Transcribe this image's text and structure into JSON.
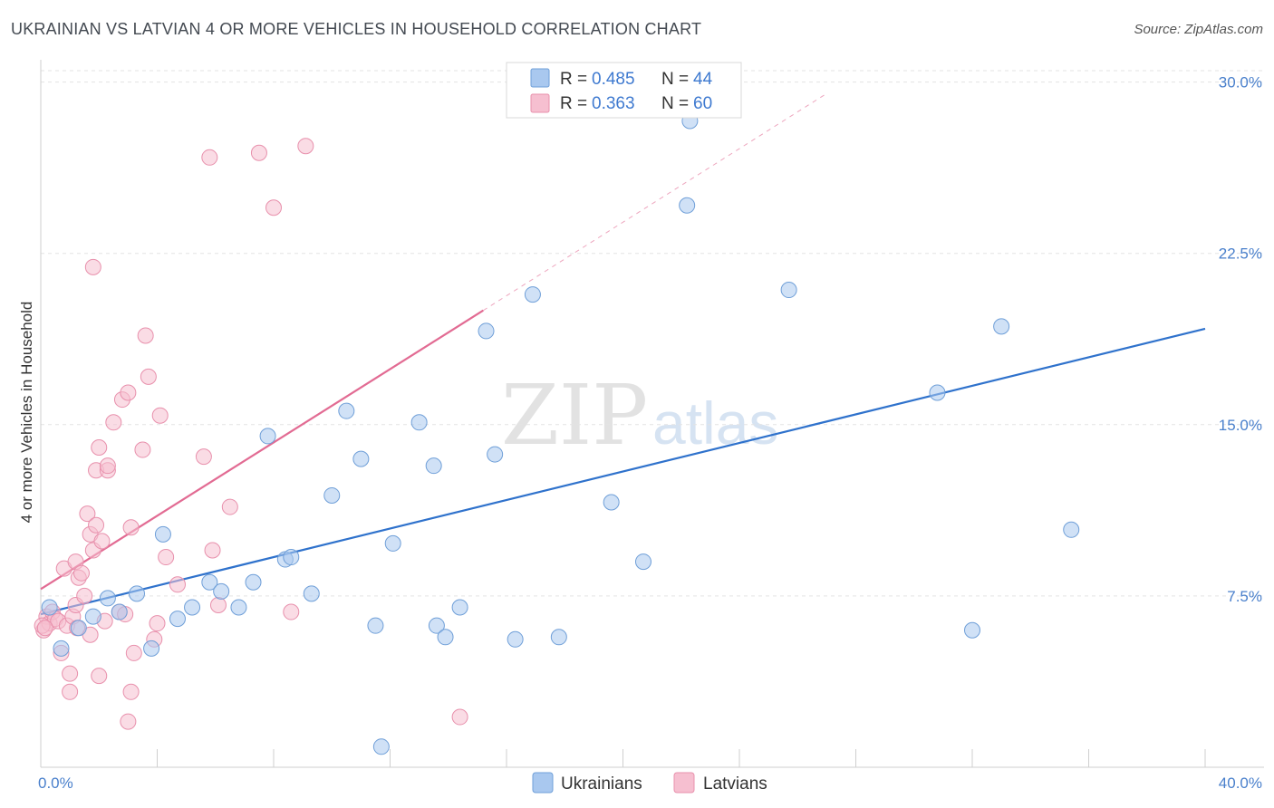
{
  "header": {
    "title": "UKRAINIAN VS LATVIAN 4 OR MORE VEHICLES IN HOUSEHOLD CORRELATION CHART",
    "source": "Source: ZipAtlas.com"
  },
  "watermark": {
    "part1": "ZIP",
    "part2": "atlas"
  },
  "colors": {
    "ukrainians_fill": "#a9c8ef",
    "ukrainians_stroke": "#6f9fd8",
    "ukrainians_line": "#2f72cc",
    "latvians_fill": "#f6bfd0",
    "latvians_stroke": "#e890ac",
    "latvians_line": "#e26b93",
    "axis_text": "#4a80cc"
  },
  "legend": {
    "rows": [
      {
        "r_label": "R =",
        "r_value": "0.485",
        "n_label": "N =",
        "n_value": "44"
      },
      {
        "r_label": "R =",
        "r_value": "0.363",
        "n_label": "N =",
        "n_value": "60"
      }
    ]
  },
  "bottom_legend": {
    "ukrainians": "Ukrainians",
    "latvians": "Latvians"
  },
  "chart_data": {
    "type": "scatter",
    "title": "UKRAINIAN VS LATVIAN 4 OR MORE VEHICLES IN HOUSEHOLD CORRELATION CHART",
    "xlabel": "",
    "ylabel": "4 or more Vehicles in Household",
    "xlim": [
      0,
      40
    ],
    "ylim": [
      0,
      30.5
    ],
    "x_tick_labels": [
      "0.0%",
      "40.0%"
    ],
    "y_ticks": [
      7.5,
      15.0,
      22.5,
      30.0
    ],
    "y_tick_labels": [
      "7.5%",
      "15.0%",
      "22.5%",
      "30.0%"
    ],
    "series": [
      {
        "name": "Ukrainians",
        "r": 0.485,
        "n": 44,
        "trend": {
          "x0": 0,
          "y0": 6.7,
          "x1": 40,
          "y1": 19.2
        },
        "points": [
          [
            0.3,
            7.0
          ],
          [
            0.7,
            5.2
          ],
          [
            1.3,
            6.1
          ],
          [
            1.8,
            6.6
          ],
          [
            2.3,
            7.4
          ],
          [
            2.7,
            6.8
          ],
          [
            3.3,
            7.6
          ],
          [
            3.8,
            5.2
          ],
          [
            4.2,
            10.2
          ],
          [
            4.7,
            6.5
          ],
          [
            5.2,
            7.0
          ],
          [
            5.8,
            8.1
          ],
          [
            6.2,
            7.7
          ],
          [
            6.8,
            7.0
          ],
          [
            7.3,
            8.1
          ],
          [
            7.8,
            14.5
          ],
          [
            8.4,
            9.1
          ],
          [
            8.6,
            9.2
          ],
          [
            9.3,
            7.6
          ],
          [
            10.0,
            11.9
          ],
          [
            10.5,
            15.6
          ],
          [
            11.0,
            13.5
          ],
          [
            11.5,
            6.2
          ],
          [
            11.7,
            0.9
          ],
          [
            12.1,
            9.8
          ],
          [
            13.0,
            15.1
          ],
          [
            13.5,
            13.2
          ],
          [
            13.6,
            6.2
          ],
          [
            13.9,
            5.7
          ],
          [
            14.4,
            7.0
          ],
          [
            15.3,
            19.1
          ],
          [
            15.6,
            13.7
          ],
          [
            16.3,
            5.6
          ],
          [
            16.9,
            20.7
          ],
          [
            17.8,
            5.7
          ],
          [
            19.6,
            11.6
          ],
          [
            20.7,
            9.0
          ],
          [
            22.2,
            24.6
          ],
          [
            25.7,
            20.9
          ],
          [
            30.8,
            16.4
          ],
          [
            32.0,
            6.0
          ],
          [
            33.0,
            19.3
          ],
          [
            35.4,
            10.4
          ],
          [
            22.3,
            28.3
          ]
        ]
      },
      {
        "name": "Latvians",
        "r": 0.363,
        "n": 60,
        "trend": {
          "x0": 0,
          "y0": 7.8,
          "x1": 15.2,
          "y1": 20.0
        },
        "trend_extension": {
          "x0": 15.2,
          "y0": 20.0,
          "x1": 27.0,
          "y1": 29.5
        },
        "points": [
          [
            0.1,
            6.0
          ],
          [
            0.2,
            6.6
          ],
          [
            0.3,
            6.3
          ],
          [
            0.4,
            6.8
          ],
          [
            0.5,
            6.5
          ],
          [
            0.6,
            6.4
          ],
          [
            0.7,
            5.0
          ],
          [
            0.8,
            8.7
          ],
          [
            0.9,
            6.2
          ],
          [
            1.0,
            4.1
          ],
          [
            1.0,
            3.3
          ],
          [
            1.1,
            6.6
          ],
          [
            1.2,
            7.1
          ],
          [
            1.2,
            9.0
          ],
          [
            1.3,
            8.3
          ],
          [
            1.4,
            8.5
          ],
          [
            1.5,
            7.5
          ],
          [
            1.6,
            11.1
          ],
          [
            1.7,
            5.8
          ],
          [
            1.7,
            10.2
          ],
          [
            1.8,
            9.5
          ],
          [
            1.8,
            21.9
          ],
          [
            1.9,
            10.6
          ],
          [
            1.9,
            13.0
          ],
          [
            2.0,
            4.0
          ],
          [
            2.0,
            14.0
          ],
          [
            2.1,
            9.9
          ],
          [
            2.2,
            6.4
          ],
          [
            2.3,
            13.0
          ],
          [
            2.3,
            13.2
          ],
          [
            2.5,
            15.1
          ],
          [
            2.7,
            6.8
          ],
          [
            2.8,
            16.1
          ],
          [
            2.9,
            6.7
          ],
          [
            3.0,
            2.0
          ],
          [
            3.0,
            16.4
          ],
          [
            3.1,
            3.3
          ],
          [
            3.1,
            10.5
          ],
          [
            3.2,
            5.0
          ],
          [
            3.5,
            13.9
          ],
          [
            3.6,
            18.9
          ],
          [
            3.7,
            17.1
          ],
          [
            3.9,
            5.6
          ],
          [
            4.0,
            6.3
          ],
          [
            4.1,
            15.4
          ],
          [
            4.3,
            9.2
          ],
          [
            4.7,
            8.0
          ],
          [
            5.6,
            13.6
          ],
          [
            5.8,
            26.7
          ],
          [
            5.9,
            9.5
          ],
          [
            6.1,
            7.1
          ],
          [
            6.5,
            11.4
          ],
          [
            7.5,
            26.9
          ],
          [
            8.0,
            24.5
          ],
          [
            8.6,
            6.8
          ],
          [
            9.1,
            27.2
          ],
          [
            14.4,
            2.2
          ],
          [
            0.05,
            6.2
          ],
          [
            0.15,
            6.1
          ],
          [
            1.25,
            6.1
          ]
        ]
      }
    ]
  }
}
